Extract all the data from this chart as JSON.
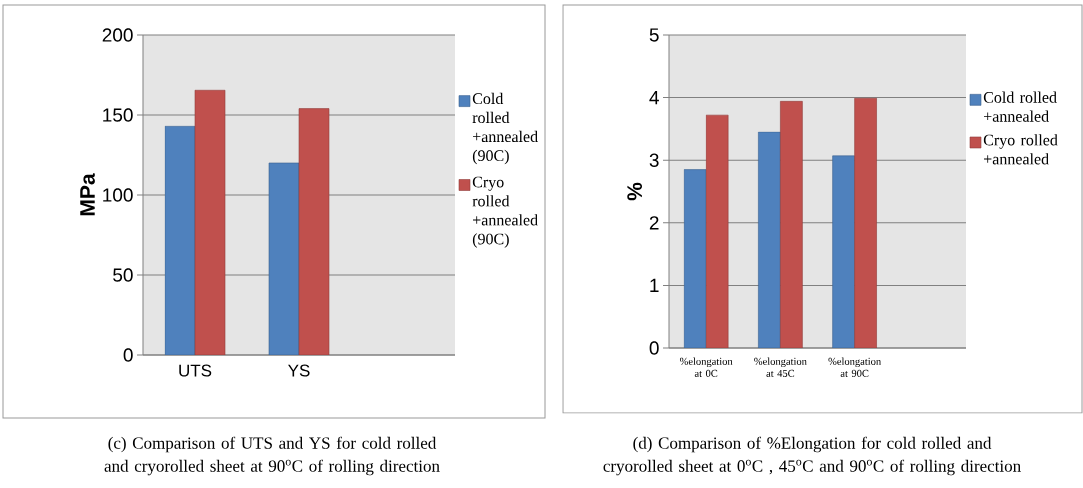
{
  "chart_data": [
    {
      "type": "bar",
      "ylabel": "MPa",
      "categories": [
        "UTS",
        "YS",
        null
      ],
      "series": [
        {
          "name": "Cold rolled +annealed (90C)",
          "color": "#4f81bd",
          "values": [
            143,
            120,
            null
          ]
        },
        {
          "name": "Cryo rolled +annealed (90C)",
          "color": "#c0504d",
          "values": [
            165.5,
            154,
            null
          ]
        }
      ],
      "ylim": [
        0,
        200
      ],
      "yticks": [
        0,
        50,
        100,
        150,
        200
      ],
      "grid": "y",
      "legend": "right",
      "annotations": [
        "(c)        Comparison of UTS and YS for cold rolled and cryorolled sheet at 90$^{o}$C of rolling direction"
      ]
    },
    {
      "type": "bar",
      "ylabel": "%",
      "categories": [
        "%elongation at 0C",
        "%elongation at 45C",
        "%elongation at 90C",
        null
      ],
      "series": [
        {
          "name": "Cold rolled +annealed",
          "color": "#4f81bd",
          "values": [
            2.85,
            3.45,
            3.07,
            null
          ]
        },
        {
          "name": "Cryo rolled +annealed",
          "color": "#c0504d",
          "values": [
            3.72,
            3.94,
            3.99,
            null
          ]
        }
      ],
      "ylim": [
        0,
        5
      ],
      "yticks": [
        0,
        1,
        2,
        3,
        4,
        5
      ],
      "grid": "y",
      "legend": "right",
      "annotations": [
        "(d)        Comparison of %Elongation for cold rolled and cryorolled sheet at 0$^{o}$C , 45$^{o}$C and 90$^{o}$C of rolling direction"
      ]
    }
  ]
}
